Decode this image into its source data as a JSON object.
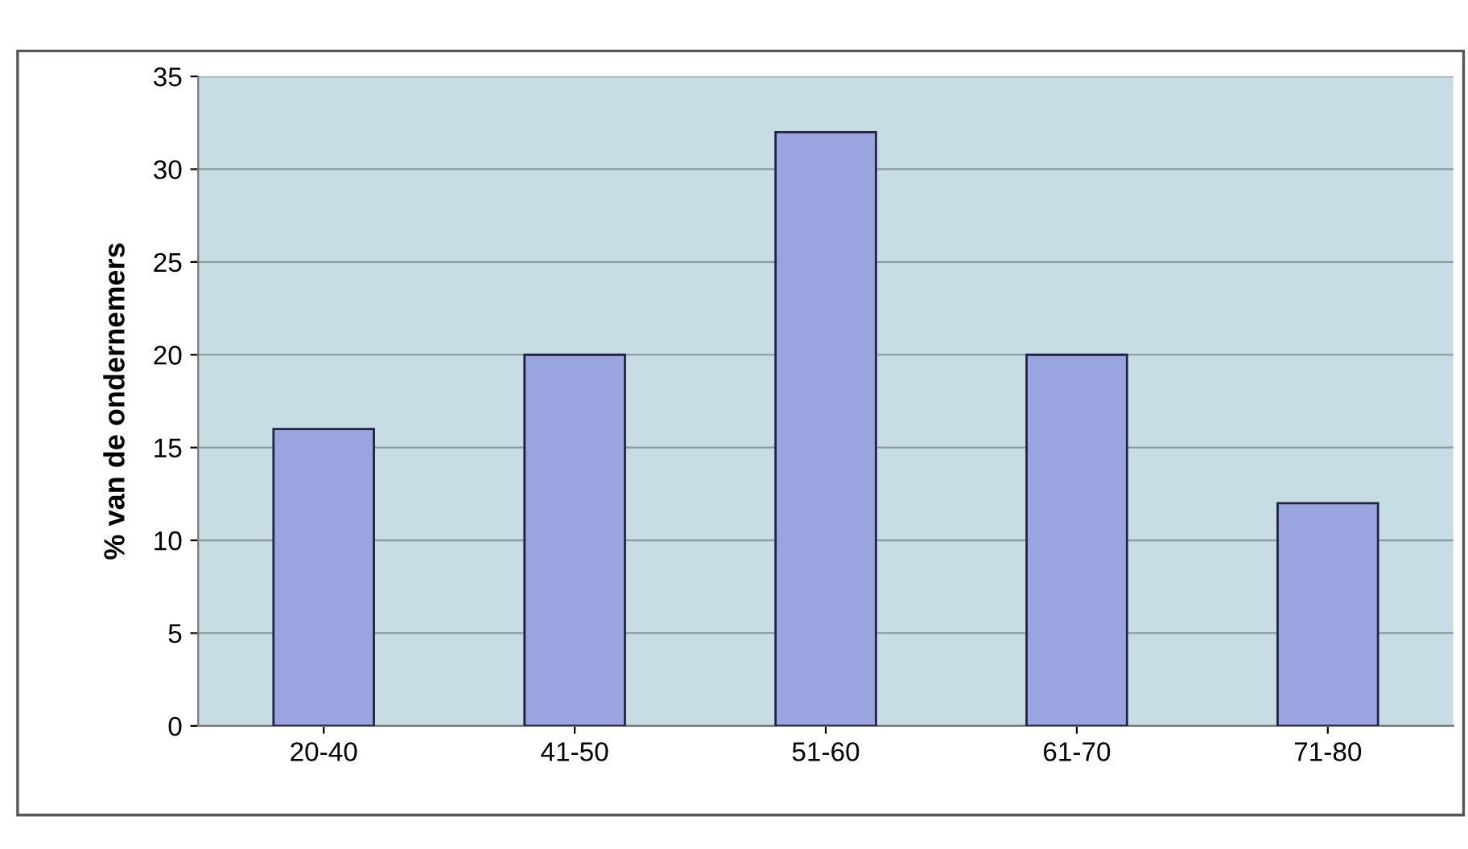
{
  "chart_data": {
    "type": "bar",
    "ylabel": "% van de ondernemers",
    "categories": [
      "20-40",
      "41-50",
      "51-60",
      "61-70",
      "71-80"
    ],
    "values": [
      16,
      20,
      32,
      20,
      12
    ],
    "color": "#9aa4de",
    "ylim": [
      0,
      35
    ],
    "yticks": [
      0,
      5,
      10,
      15,
      20,
      25,
      30,
      35
    ],
    "grid": "y"
  }
}
